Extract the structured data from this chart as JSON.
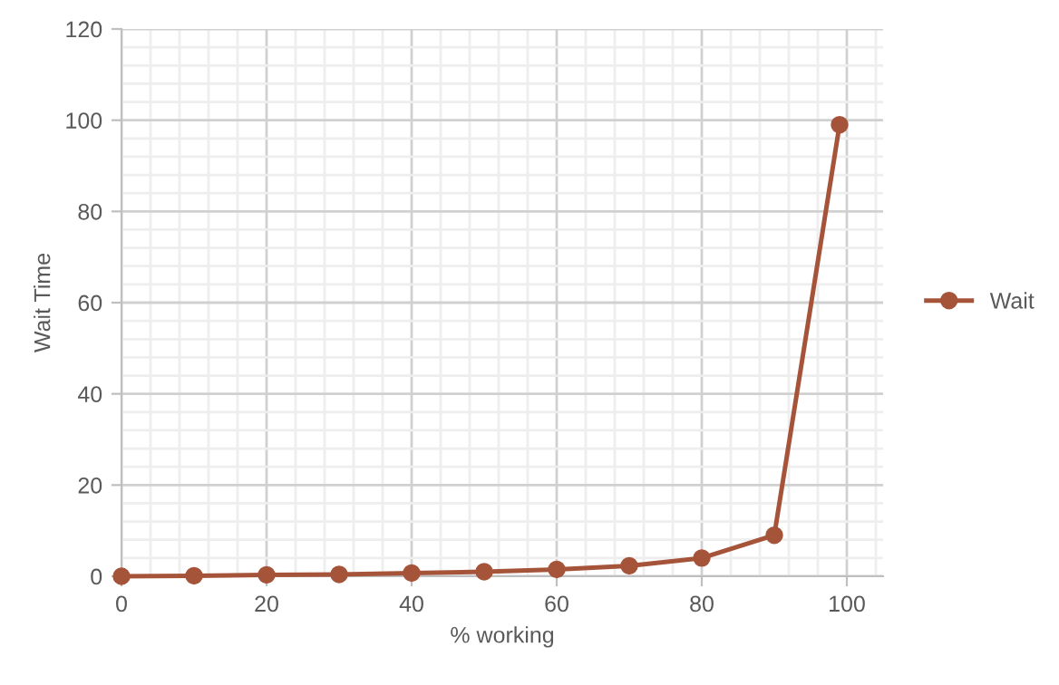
{
  "chart_data": {
    "type": "line",
    "xlabel": "% working",
    "ylabel": "Wait Time",
    "x": [
      0,
      10,
      20,
      30,
      40,
      50,
      60,
      70,
      80,
      90,
      99
    ],
    "series": [
      {
        "name": "Wait",
        "color": "#a5543a",
        "values": [
          0,
          0.1,
          0.3,
          0.4,
          0.7,
          1,
          1.5,
          2.3,
          4,
          9,
          99
        ]
      }
    ],
    "xlim": [
      0,
      105
    ],
    "xticks": [
      0,
      20,
      40,
      60,
      80,
      100
    ],
    "ylim": [
      0,
      120
    ],
    "yticks": [
      0,
      20,
      40,
      60,
      80,
      100,
      120
    ],
    "grid": true,
    "legend": "right",
    "marker": "circle",
    "line_style": "solid"
  }
}
